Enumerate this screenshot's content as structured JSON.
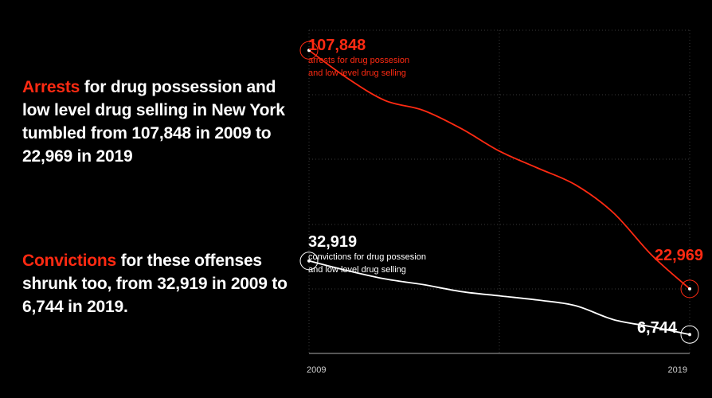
{
  "colors": {
    "accent": "#ff2a12",
    "line_secondary": "#ffffff",
    "background": "#000000",
    "grid": "#3a3a3a"
  },
  "text": {
    "arrests": {
      "highlight": "Arrests",
      "rest": " for drug possession and low level drug selling in New York tumbled from 107,848 in 2009 to 22,969 in 2019"
    },
    "convictions": {
      "highlight": "Convictions",
      "rest": " for these offenses shrunk too, from 32,919 in 2009 to 6,744 in 2019."
    }
  },
  "chart_data": {
    "type": "line",
    "x": [
      2009,
      2010,
      2011,
      2012,
      2013,
      2014,
      2015,
      2016,
      2017,
      2018,
      2019
    ],
    "ylim": [
      0,
      115000
    ],
    "series": [
      {
        "name": "arrests",
        "color": "#ff2a12",
        "values": [
          107848,
          98000,
          90000,
          86500,
          80000,
          72000,
          66000,
          60000,
          50000,
          35000,
          22969
        ],
        "start_label": "107,848",
        "start_caption_1": "arrests for drug possesion",
        "start_caption_2": "and low level drug selling",
        "end_label": "22,969"
      },
      {
        "name": "convictions",
        "color": "#ffffff",
        "values": [
          32919,
          29500,
          26500,
          24500,
          22000,
          20500,
          19000,
          17000,
          12000,
          9500,
          6744
        ],
        "start_label": "32,919",
        "start_caption_1": "convictions for drug possesion",
        "start_caption_2": "and low level drug selling",
        "end_label": "6,744"
      }
    ],
    "x_tick_labels": [
      "2009",
      "2019"
    ]
  }
}
